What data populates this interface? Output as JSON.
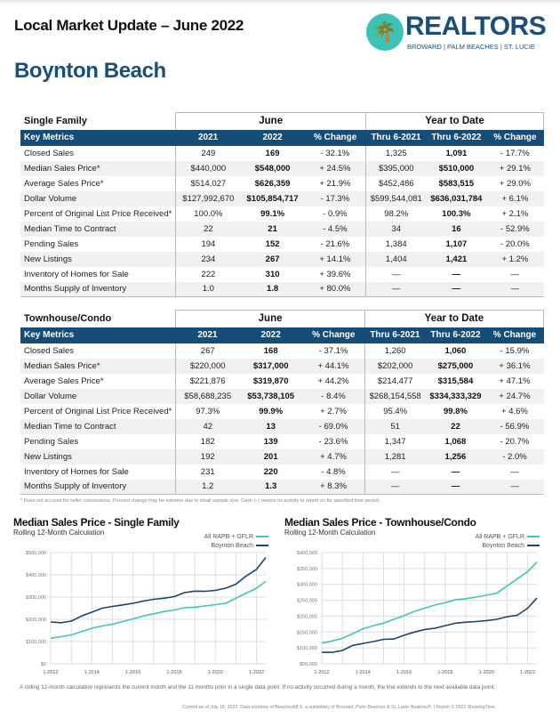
{
  "header": {
    "title": "Local Market Update – June 2022",
    "city": "Boynton Beach",
    "logo": {
      "word": "REALTORS",
      "sub": "BROWARD | PALM BEACHES | ST. LUCIE"
    }
  },
  "columns": {
    "key_metrics": "Key Metrics",
    "june": "June",
    "ytd": "Year to Date",
    "c2021": "2021",
    "c2022": "2022",
    "pct": "% Change",
    "thru2021": "Thru 6-2021",
    "thru2022": "Thru 6-2022"
  },
  "single_family": {
    "title": "Single Family",
    "rows": [
      [
        "Closed Sales",
        "249",
        "169",
        "- 32.1%",
        "1,325",
        "1,091",
        "- 17.7%"
      ],
      [
        "Median Sales Price*",
        "$440,000",
        "$548,000",
        "+ 24.5%",
        "$395,000",
        "$510,000",
        "+ 29.1%"
      ],
      [
        "Average Sales Price*",
        "$514,027",
        "$626,359",
        "+ 21.9%",
        "$452,486",
        "$583,515",
        "+ 29.0%"
      ],
      [
        "Dollar Volume",
        "$127,992,670",
        "$105,854,717",
        "- 17.3%",
        "$599,544,081",
        "$636,031,784",
        "+ 6.1%"
      ],
      [
        "Percent of Original List Price Received*",
        "100.0%",
        "99.1%",
        "- 0.9%",
        "98.2%",
        "100.3%",
        "+ 2.1%"
      ],
      [
        "Median Time to Contract",
        "22",
        "21",
        "- 4.5%",
        "34",
        "16",
        "- 52.9%"
      ],
      [
        "Pending Sales",
        "194",
        "152",
        "- 21.6%",
        "1,384",
        "1,107",
        "- 20.0%"
      ],
      [
        "New Listings",
        "234",
        "267",
        "+ 14.1%",
        "1,404",
        "1,421",
        "+ 1.2%"
      ],
      [
        "Inventory of Homes for Sale",
        "222",
        "310",
        "+ 39.6%",
        "—",
        "—",
        "—"
      ],
      [
        "Months Supply of Inventory",
        "1.0",
        "1.8",
        "+ 80.0%",
        "—",
        "—",
        "—"
      ]
    ]
  },
  "townhouse_condo": {
    "title": "Townhouse/Condo",
    "rows": [
      [
        "Closed Sales",
        "267",
        "168",
        "- 37.1%",
        "1,260",
        "1,060",
        "- 15.9%"
      ],
      [
        "Median Sales Price*",
        "$220,000",
        "$317,000",
        "+ 44.1%",
        "$202,000",
        "$275,000",
        "+ 36.1%"
      ],
      [
        "Average Sales Price*",
        "$221,876",
        "$319,870",
        "+ 44.2%",
        "$214,477",
        "$315,584",
        "+ 47.1%"
      ],
      [
        "Dollar Volume",
        "$58,688,235",
        "$53,738,105",
        "- 8.4%",
        "$268,154,558",
        "$334,333,329",
        "+ 24.7%"
      ],
      [
        "Percent of Original List Price Received*",
        "97.3%",
        "99.9%",
        "+ 2.7%",
        "95.4%",
        "99.8%",
        "+ 4.6%"
      ],
      [
        "Median Time to Contract",
        "42",
        "13",
        "- 69.0%",
        "51",
        "22",
        "- 56.9%"
      ],
      [
        "Pending Sales",
        "182",
        "139",
        "- 23.6%",
        "1,347",
        "1,068",
        "- 20.7%"
      ],
      [
        "New Listings",
        "192",
        "201",
        "+ 4.7%",
        "1,281",
        "1,256",
        "- 2.0%"
      ],
      [
        "Inventory of Homes for Sale",
        "231",
        "220",
        "- 4.8%",
        "—",
        "—",
        "—"
      ],
      [
        "Months Supply of Inventory",
        "1.2",
        "1.3",
        "+ 8.3%",
        "—",
        "—",
        "—"
      ]
    ]
  },
  "footnote": "* Does not account for seller concessions. Percent change may be extreme due to small sample size. Dash (–) means no activity to report on for specified time period.",
  "chart_data": [
    {
      "type": "line",
      "title": "Median Sales Price - Single Family",
      "subtitle": "Rolling 12-Month Calculation",
      "legend_placement": "top-right",
      "grid": true,
      "xticks": [
        "1-2012",
        "1-2014",
        "1-2016",
        "1-2018",
        "1-2020",
        "1-2022"
      ],
      "xlim": [
        2012,
        2022.45
      ],
      "yticks": [
        "$0",
        "$100,000",
        "$200,000",
        "$300,000",
        "$400,000",
        "$500,000"
      ],
      "ylim": [
        0,
        500000
      ],
      "x": [
        2012,
        2012.5,
        2013,
        2013.5,
        2014,
        2014.5,
        2015,
        2015.5,
        2016,
        2016.5,
        2017,
        2017.5,
        2018,
        2018.5,
        2019,
        2019.5,
        2020,
        2020.5,
        2021,
        2021.5,
        2022,
        2022.45
      ],
      "series": [
        {
          "name": "All RAPB + GFLR",
          "color": "#3cc8b4",
          "values": [
            115000,
            122000,
            130000,
            145000,
            160000,
            170000,
            178000,
            190000,
            202000,
            215000,
            225000,
            235000,
            242000,
            252000,
            255000,
            260000,
            266000,
            272000,
            295000,
            318000,
            340000,
            370000
          ]
        },
        {
          "name": "Boynton Beach",
          "color": "#17466e",
          "values": [
            188000,
            185000,
            192000,
            215000,
            232000,
            250000,
            258000,
            265000,
            272000,
            282000,
            290000,
            295000,
            302000,
            320000,
            327000,
            326000,
            330000,
            340000,
            358000,
            395000,
            425000,
            478000
          ]
        }
      ]
    },
    {
      "type": "line",
      "title": "Median Sales Price - Townhouse/Condo",
      "subtitle": "Rolling 12-Month Calculation",
      "legend_placement": "top-right",
      "grid": true,
      "xticks": [
        "1-2012",
        "1-2014",
        "1-2016",
        "1-2018",
        "1-2020",
        "1-2022"
      ],
      "xlim": [
        2012,
        2022.45
      ],
      "yticks": [
        "$50,000",
        "$100,000",
        "$150,000",
        "$200,000",
        "$250,000",
        "$300,000",
        "$350,000",
        "$400,000"
      ],
      "ylim": [
        50000,
        400000
      ],
      "x": [
        2012,
        2012.5,
        2013,
        2013.5,
        2014,
        2014.5,
        2015,
        2015.5,
        2016,
        2016.5,
        2017,
        2017.5,
        2018,
        2018.5,
        2019,
        2019.5,
        2020,
        2020.5,
        2021,
        2021.5,
        2022,
        2022.45
      ],
      "series": [
        {
          "name": "All RAPB + GFLR",
          "color": "#3cc8b4",
          "values": [
            115000,
            122000,
            130000,
            145000,
            160000,
            170000,
            178000,
            190000,
            202000,
            215000,
            225000,
            235000,
            242000,
            252000,
            255000,
            260000,
            266000,
            272000,
            295000,
            318000,
            340000,
            370000
          ]
        },
        {
          "name": "Boynton Beach",
          "color": "#17466e",
          "values": [
            86000,
            86000,
            92000,
            108000,
            114000,
            120000,
            127000,
            128000,
            140000,
            150000,
            158000,
            162000,
            170000,
            178000,
            181000,
            183000,
            186000,
            190000,
            198000,
            203000,
            225000,
            257000
          ]
        }
      ]
    }
  ],
  "rolling_note": "A rolling 12-month calculation represents the current month and the 11 months prior in a single data point. If no activity occurred during a month, the line extends to the next available data point.",
  "credits": "Current as of July 16, 2022. Data courtesy of BeachesMLS, a subsidiary of Broward, Palm Beaches & St. Lucie Realtors®. | Report © 2022 ShowingTime."
}
